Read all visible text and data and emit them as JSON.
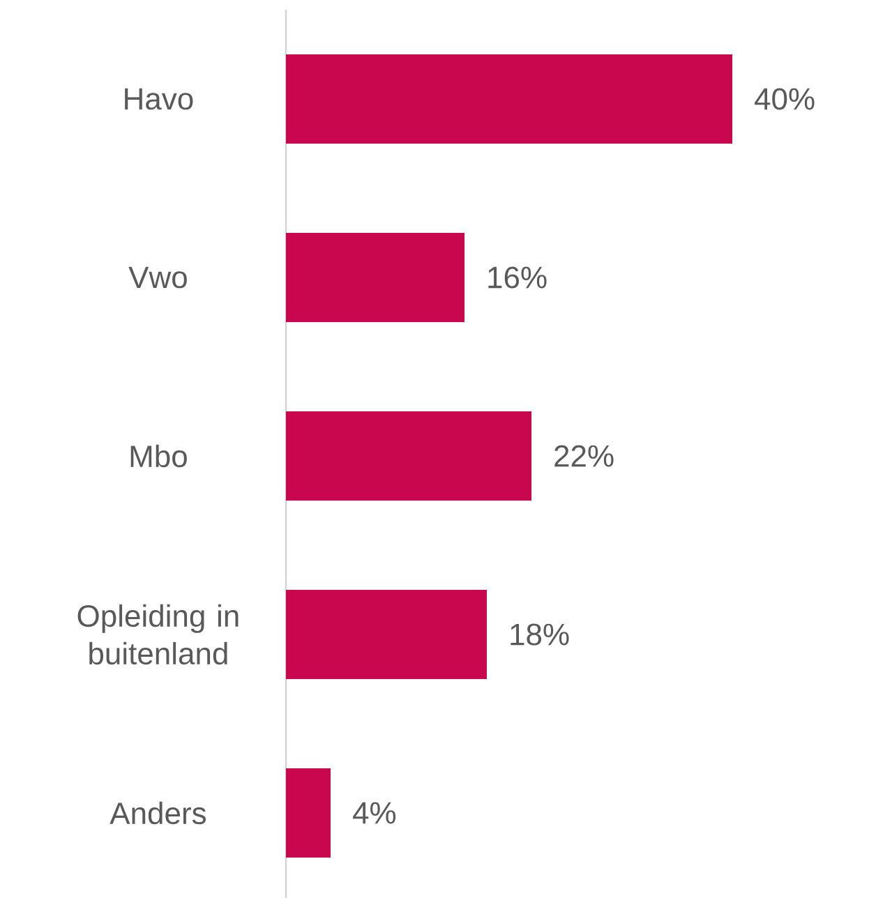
{
  "chart_data": {
    "type": "bar",
    "orientation": "horizontal",
    "categories": [
      "Havo",
      "Vwo",
      "Mbo",
      "Opleiding in buitenland",
      "Anders"
    ],
    "values": [
      40,
      16,
      22,
      18,
      4
    ],
    "value_labels": [
      "40%",
      "16%",
      "22%",
      "18%",
      "4%"
    ],
    "color": "#c8074f"
  }
}
